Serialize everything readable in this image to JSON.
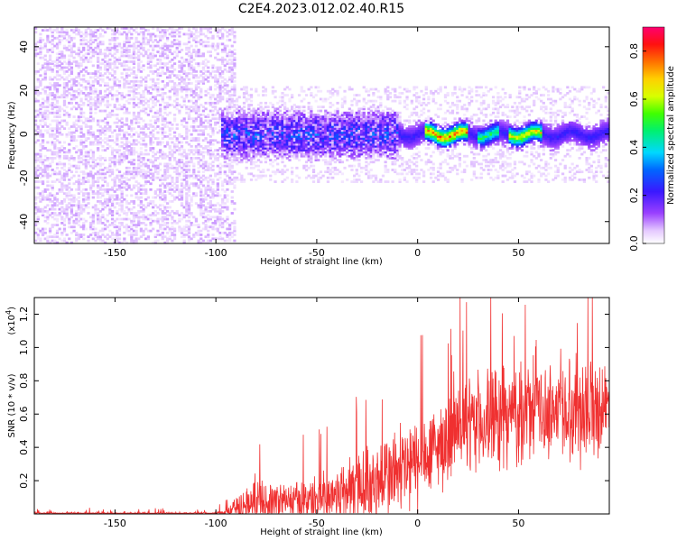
{
  "title": "C2E4.2023.012.02.40.R15",
  "chart_data": [
    {
      "type": "heatmap",
      "xlabel": "Height of straight line (km)",
      "ylabel": "Frequency (Hz)",
      "xlim": [
        -190,
        95
      ],
      "ylim": [
        -50,
        49
      ],
      "x_ticks": [
        -150,
        -100,
        -50,
        0,
        50
      ],
      "y_ticks": [
        -40,
        -20,
        0,
        20,
        40
      ],
      "colorbar": {
        "label": "Normalized spectral amplitude",
        "range": [
          0.0,
          0.9
        ],
        "ticks": [
          0.0,
          0.2,
          0.4,
          0.6,
          0.8
        ],
        "colormap": "white-purple-blue-cyan-green-yellow-orange-red-magenta"
      },
      "regions": [
        {
          "x_range": [
            -190,
            -90
          ],
          "y_range": [
            -50,
            49
          ],
          "amplitude_range": [
            0.02,
            0.08
          ],
          "pattern": "scattered noise"
        },
        {
          "x_range": [
            -97,
            -10
          ],
          "y_range": [
            -12,
            12
          ],
          "amplitude_range": [
            0.05,
            0.35
          ],
          "pattern": "dense band around 0 Hz"
        },
        {
          "x_range": [
            -10,
            95
          ],
          "y_range": [
            -6,
            6
          ],
          "amplitude_range": [
            0.1,
            0.9
          ],
          "pattern": "narrow band centered near 0 Hz, peaks near 0-20 km and 45-60 km"
        }
      ]
    },
    {
      "type": "line",
      "xlabel": "Height of straight line (km)",
      "ylabel": "SNR (10 * v/v)",
      "y_scale_note": "(x10",
      "y_scale_exp": "4",
      "y_scale_close": ")",
      "xlim": [
        -190,
        95
      ],
      "ylim": [
        0,
        1.3
      ],
      "x_ticks": [
        -150,
        -100,
        -50,
        0,
        50
      ],
      "y_ticks": [
        0.2,
        0.4,
        0.6,
        0.8,
        1.0,
        1.2
      ],
      "line_color": "#f03030",
      "envelope": {
        "x": [
          -190,
          -100,
          -92,
          -88,
          -80,
          -70,
          -60,
          -50,
          -40,
          -30,
          -20,
          -10,
          0,
          10,
          20,
          30,
          40,
          50,
          60,
          70,
          80,
          95
        ],
        "base": [
          0.0,
          0.0,
          0.02,
          0.04,
          0.07,
          0.07,
          0.08,
          0.09,
          0.12,
          0.16,
          0.2,
          0.25,
          0.3,
          0.4,
          0.5,
          0.55,
          0.58,
          0.6,
          0.62,
          0.63,
          0.64,
          0.65
        ],
        "spread": [
          0.015,
          0.015,
          0.06,
          0.12,
          0.15,
          0.15,
          0.14,
          0.16,
          0.2,
          0.3,
          0.3,
          0.35,
          0.35,
          0.3,
          0.32,
          0.35,
          0.38,
          0.35,
          0.3,
          0.35,
          0.4,
          0.3
        ]
      }
    }
  ]
}
